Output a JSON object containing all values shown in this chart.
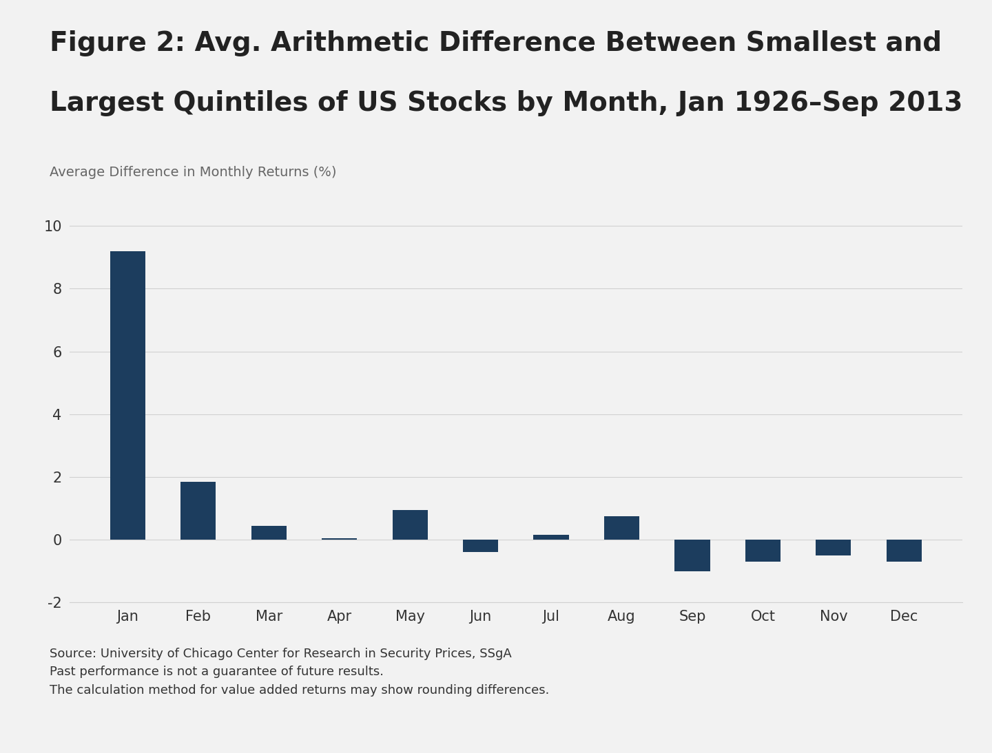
{
  "title_line1": "Figure 2: Avg. Arithmetic Difference Between Smallest and",
  "title_line2": "Largest Quintiles of US Stocks by Month, Jan 1926–Sep 2013",
  "ylabel": "Average Difference in Monthly Returns (%)",
  "months": [
    "Jan",
    "Feb",
    "Mar",
    "Apr",
    "May",
    "Jun",
    "Jul",
    "Aug",
    "Sep",
    "Oct",
    "Nov",
    "Dec"
  ],
  "bar_values": [
    9.2,
    1.85,
    0.45,
    0.05,
    0.95,
    -0.4,
    0.15,
    0.75,
    -1.0,
    -0.7,
    -0.5,
    -0.7
  ],
  "bar_color": "#1c3d5e",
  "background_color": "#f2f2f2",
  "ylim_min": -2,
  "ylim_max": 10,
  "yticks": [
    -2,
    0,
    2,
    4,
    6,
    8,
    10
  ],
  "grid_color": "#d0d0d0",
  "title_fontsize": 28,
  "ylabel_fontsize": 14,
  "tick_fontsize": 15,
  "footnote_fontsize": 13,
  "footnote": "Source: University of Chicago Center for Research in Security Prices, SSgA\nPast performance is not a guarantee of future results.\nThe calculation method for value added returns may show rounding differences."
}
